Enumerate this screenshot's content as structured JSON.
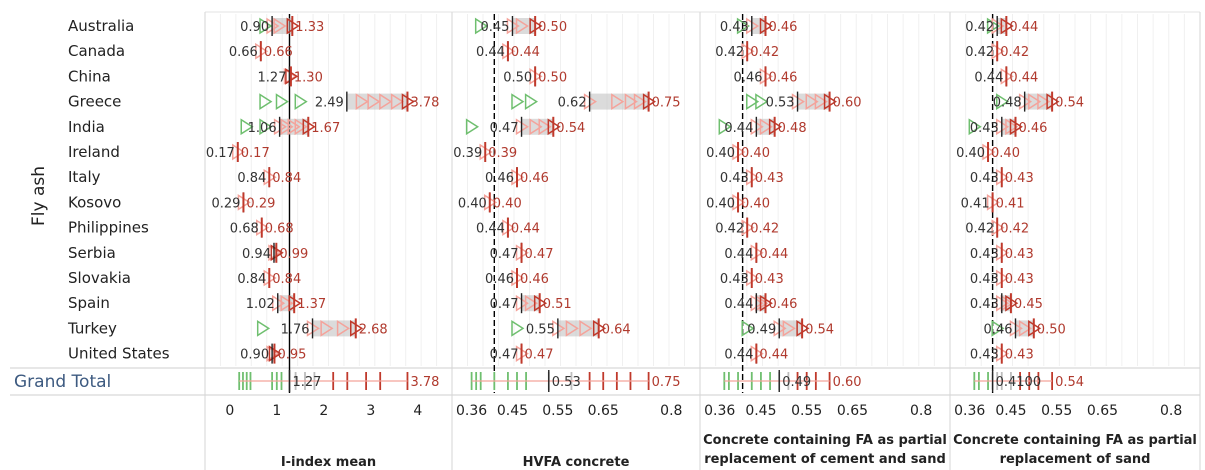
{
  "dimension_label": "Fly ash",
  "grand_total_label": "Grand Total",
  "colors": {
    "red": "#c0392b",
    "lightred": "#f4a39b",
    "green": "#6fbf6f",
    "gray": "#bdbdbd",
    "ref": "#000000",
    "text_red": "#b03a2e",
    "text_dark": "#333333",
    "grand_total": "#3d5a80"
  },
  "chart_data": [
    {
      "type": "scatter",
      "title": "I-index mean",
      "xlim": [
        -0.4,
        4.6
      ],
      "xticks": [
        {
          "v": 0,
          "label": "0"
        },
        {
          "v": 1,
          "label": "1"
        },
        {
          "v": 2,
          "label": "2"
        },
        {
          "v": 3,
          "label": "3"
        },
        {
          "v": 4,
          "label": "4"
        }
      ],
      "reference_line": 1.27,
      "categories": [
        "Australia",
        "Canada",
        "China",
        "Greece",
        "India",
        "Ireland",
        "Italy",
        "Kosovo",
        "Philippines",
        "Serbia",
        "Slovakia",
        "Spain",
        "Turkey",
        "United States"
      ],
      "series": [
        {
          "role": "mean",
          "values": [
            0.9,
            0.66,
            1.27,
            2.49,
            1.06,
            0.17,
            0.84,
            0.29,
            0.68,
            0.94,
            0.84,
            1.02,
            1.76,
            0.9
          ]
        },
        {
          "role": "max",
          "values": [
            1.33,
            0.66,
            1.3,
            3.78,
            1.67,
            0.17,
            0.84,
            0.29,
            0.68,
            0.99,
            0.84,
            1.37,
            2.68,
            0.95
          ]
        }
      ],
      "point_markers": [
        [
          0.75,
          0.9,
          1.05,
          1.33
        ],
        [
          0.66
        ],
        [
          1.27,
          1.3
        ],
        [
          0.75,
          1.1,
          1.5,
          2.8,
          3.05,
          3.3,
          3.55,
          3.78
        ],
        [
          0.35,
          0.75,
          1.06,
          1.2,
          1.35,
          1.5,
          1.67
        ],
        [
          0.17
        ],
        [
          0.84
        ],
        [
          0.29
        ],
        [
          0.68
        ],
        [
          0.94,
          0.99
        ],
        [
          0.84
        ],
        [
          1.02,
          1.2,
          1.37
        ],
        [
          0.7,
          1.76,
          2.05,
          2.4,
          2.68
        ],
        [
          0.9,
          0.95
        ]
      ],
      "grand_total": {
        "mean": 1.27,
        "max": 3.78,
        "values": [
          0.2,
          0.28,
          0.36,
          0.44,
          0.9,
          1.0,
          1.1,
          1.4,
          1.6,
          1.8,
          2.2,
          2.5,
          2.9,
          3.2,
          3.78
        ]
      }
    },
    {
      "type": "scatter",
      "title": "HVFA concrete",
      "xlim": [
        0.33,
        0.85
      ],
      "xticks": [
        {
          "v": 0.36,
          "label": "0.36"
        },
        {
          "v": 0.45,
          "label": "0.45"
        },
        {
          "v": 0.55,
          "label": "0.55"
        },
        {
          "v": 0.65,
          "label": "0.65"
        },
        {
          "v": 0.8,
          "label": "0.8"
        }
      ],
      "reference_line": 0.41,
      "categories": [
        "Australia",
        "Canada",
        "China",
        "Greece",
        "India",
        "Ireland",
        "Italy",
        "Kosovo",
        "Philippines",
        "Serbia",
        "Slovakia",
        "Spain",
        "Turkey",
        "United States"
      ],
      "series": [
        {
          "role": "mean",
          "values": [
            0.45,
            0.44,
            0.5,
            0.62,
            0.47,
            0.39,
            0.46,
            0.4,
            0.44,
            0.47,
            0.46,
            0.47,
            0.55,
            0.47
          ]
        },
        {
          "role": "max",
          "values": [
            0.5,
            0.44,
            0.5,
            0.75,
            0.54,
            0.39,
            0.46,
            0.4,
            0.44,
            0.47,
            0.46,
            0.51,
            0.64,
            0.47
          ]
        }
      ],
      "point_markers": [
        [
          0.38,
          0.45,
          0.47,
          0.5
        ],
        [
          0.44
        ],
        [
          0.5
        ],
        [
          0.46,
          0.49,
          0.62,
          0.68,
          0.71,
          0.73,
          0.75
        ],
        [
          0.36,
          0.47,
          0.5,
          0.52,
          0.54
        ],
        [
          0.39
        ],
        [
          0.46
        ],
        [
          0.4
        ],
        [
          0.44
        ],
        [
          0.47
        ],
        [
          0.46
        ],
        [
          0.47,
          0.49,
          0.51
        ],
        [
          0.46,
          0.55,
          0.58,
          0.61,
          0.64
        ],
        [
          0.47
        ]
      ],
      "grand_total": {
        "mean": 0.53,
        "max": 0.75,
        "values": [
          0.36,
          0.37,
          0.38,
          0.41,
          0.44,
          0.46,
          0.48,
          0.53,
          0.58,
          0.62,
          0.65,
          0.68,
          0.71,
          0.75
        ]
      }
    },
    {
      "type": "scatter",
      "title": "Concrete containing FA as partial replacement of cement and sand",
      "xlim": [
        0.33,
        0.85
      ],
      "xticks": [
        {
          "v": 0.36,
          "label": "0.36"
        },
        {
          "v": 0.45,
          "label": "0.45"
        },
        {
          "v": 0.55,
          "label": "0.55"
        },
        {
          "v": 0.65,
          "label": "0.65"
        },
        {
          "v": 0.8,
          "label": "0.8"
        }
      ],
      "reference_line": 0.41,
      "categories": [
        "Australia",
        "Canada",
        "China",
        "Greece",
        "India",
        "Ireland",
        "Italy",
        "Kosovo",
        "Philippines",
        "Serbia",
        "Slovakia",
        "Spain",
        "Turkey",
        "United States"
      ],
      "series": [
        {
          "role": "mean",
          "values": [
            0.43,
            0.42,
            0.46,
            0.53,
            0.44,
            0.4,
            0.43,
            0.4,
            0.42,
            0.44,
            0.43,
            0.44,
            0.49,
            0.44
          ]
        },
        {
          "role": "max",
          "values": [
            0.46,
            0.42,
            0.46,
            0.6,
            0.48,
            0.4,
            0.43,
            0.4,
            0.42,
            0.44,
            0.43,
            0.46,
            0.54,
            0.44
          ]
        }
      ],
      "point_markers": [
        [
          0.41,
          0.43,
          0.46
        ],
        [
          0.42
        ],
        [
          0.46
        ],
        [
          0.43,
          0.45,
          0.53,
          0.56,
          0.58,
          0.6
        ],
        [
          0.37,
          0.44,
          0.46,
          0.48
        ],
        [
          0.4
        ],
        [
          0.43
        ],
        [
          0.4
        ],
        [
          0.42
        ],
        [
          0.44
        ],
        [
          0.43
        ],
        [
          0.44,
          0.45,
          0.46
        ],
        [
          0.42,
          0.49,
          0.51,
          0.54
        ],
        [
          0.44
        ]
      ],
      "grand_total": {
        "mean": 0.49,
        "max": 0.6,
        "values": [
          0.37,
          0.38,
          0.4,
          0.43,
          0.45,
          0.47,
          0.49,
          0.51,
          0.53,
          0.55,
          0.57,
          0.6
        ]
      }
    },
    {
      "type": "scatter",
      "title": "Concrete containing FA as partial replacement of sand",
      "xlim": [
        0.33,
        0.85
      ],
      "xticks": [
        {
          "v": 0.36,
          "label": "0.36"
        },
        {
          "v": 0.45,
          "label": "0.45"
        },
        {
          "v": 0.55,
          "label": "0.55"
        },
        {
          "v": 0.65,
          "label": "0.65"
        },
        {
          "v": 0.8,
          "label": "0.8"
        }
      ],
      "reference_line": 0.41,
      "categories": [
        "Australia",
        "Canada",
        "China",
        "Greece",
        "India",
        "Ireland",
        "Italy",
        "Kosovo",
        "Philippines",
        "Serbia",
        "Slovakia",
        "Spain",
        "Turkey",
        "United States"
      ],
      "series": [
        {
          "role": "mean",
          "values": [
            0.42,
            0.42,
            0.44,
            0.48,
            0.43,
            0.4,
            0.43,
            0.41,
            0.42,
            0.43,
            0.43,
            0.43,
            0.46,
            0.43
          ]
        },
        {
          "role": "max",
          "values": [
            0.44,
            0.42,
            0.44,
            0.54,
            0.46,
            0.4,
            0.43,
            0.41,
            0.42,
            0.43,
            0.43,
            0.45,
            0.5,
            0.43
          ]
        }
      ],
      "point_markers": [
        [
          0.41,
          0.42,
          0.44
        ],
        [
          0.42
        ],
        [
          0.44
        ],
        [
          0.43,
          0.48,
          0.5,
          0.52,
          0.54
        ],
        [
          0.37,
          0.43,
          0.45,
          0.46
        ],
        [
          0.4
        ],
        [
          0.43
        ],
        [
          0.41
        ],
        [
          0.42
        ],
        [
          0.43
        ],
        [
          0.43
        ],
        [
          0.43,
          0.44,
          0.45
        ],
        [
          0.42,
          0.46,
          0.48,
          0.5
        ],
        [
          0.43
        ]
      ],
      "grand_total": {
        "mean": 0.41,
        "max": 0.54,
        "values": [
          0.37,
          0.38,
          0.4,
          0.41,
          0.42,
          0.43,
          0.45,
          0.47,
          0.49,
          0.51,
          0.54
        ],
        "label": "0.4100"
      }
    }
  ]
}
